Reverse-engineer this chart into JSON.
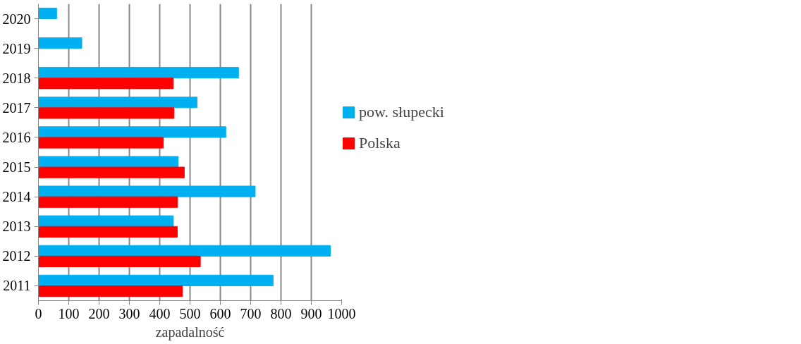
{
  "chart_data": {
    "type": "bar",
    "orientation": "horizontal",
    "xlabel": "zapadalność",
    "categories": [
      "2020",
      "2019",
      "2018",
      "2017",
      "2016",
      "2015",
      "2014",
      "2013",
      "2012",
      "2011"
    ],
    "series": [
      {
        "name": "pow. słupecki",
        "color": "#00b0f0",
        "values": [
          60,
          143,
          660,
          523,
          618,
          461,
          715,
          445,
          963,
          774
        ]
      },
      {
        "name": "Polska",
        "color": "#ff0000",
        "values": [
          null,
          null,
          445,
          447,
          412,
          481,
          459,
          458,
          534,
          475
        ]
      }
    ],
    "xlim": [
      0,
      1000
    ],
    "xticks": [
      0,
      100,
      200,
      300,
      400,
      500,
      600,
      700,
      800,
      900,
      1000
    ],
    "grid": "x",
    "legend": "right"
  }
}
